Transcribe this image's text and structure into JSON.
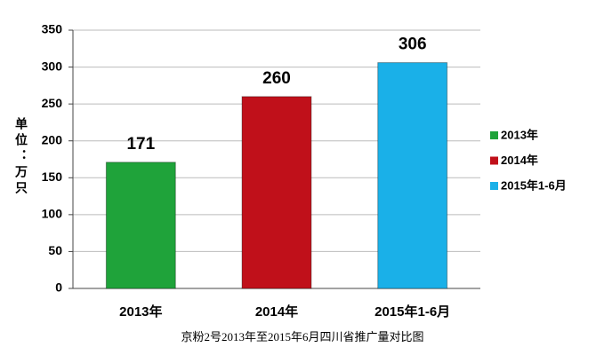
{
  "chart_data": {
    "type": "bar",
    "title": "京粉2号2013年至2015年6月四川省推广量对比图",
    "y_label": "单位：万只",
    "categories": [
      "2013年",
      "2014年",
      "2015年1-6月"
    ],
    "values": [
      171,
      260,
      306
    ],
    "colors": [
      "#1fa33a",
      "#c0101a",
      "#1ab0e8"
    ],
    "ylim": [
      0,
      350
    ],
    "yticks": [
      0,
      50,
      100,
      150,
      200,
      250,
      300,
      350
    ],
    "grid": true,
    "legend": "right"
  }
}
